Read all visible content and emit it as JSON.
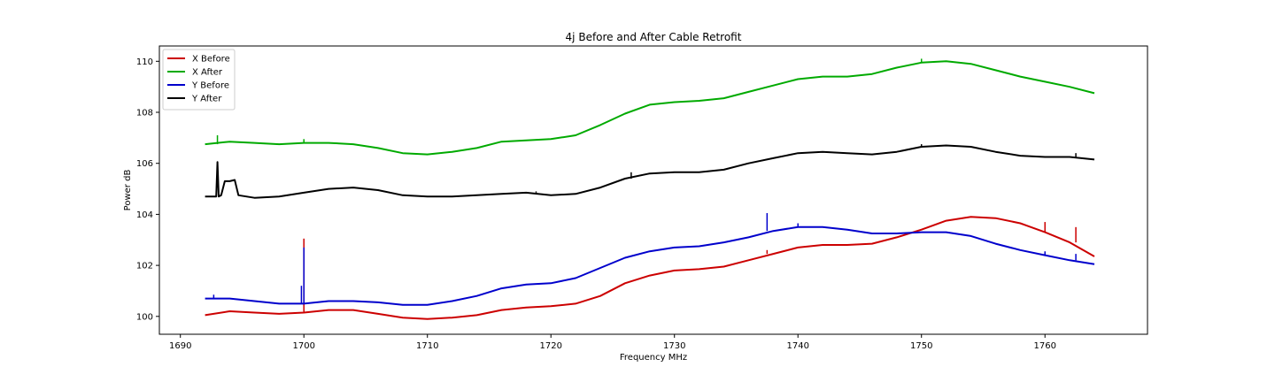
{
  "chart_data": {
    "type": "line",
    "title": "4j Before and After Cable Retrofit",
    "xlabel": "Frequency MHz",
    "ylabel": "Power dB",
    "xlim": [
      1688.3,
      1768.3
    ],
    "ylim": [
      99.3,
      110.6
    ],
    "xticks": [
      1690,
      1700,
      1710,
      1720,
      1730,
      1740,
      1750,
      1760
    ],
    "yticks": [
      100,
      102,
      104,
      106,
      108,
      110
    ],
    "grid": false,
    "legend_position": "upper left",
    "series": [
      {
        "name": "X Before",
        "color": "#cc0000",
        "points": [
          [
            1692,
            100.05
          ],
          [
            1694,
            100.2
          ],
          [
            1696,
            100.15
          ],
          [
            1698,
            100.1
          ],
          [
            1700,
            100.15
          ],
          [
            1702,
            100.25
          ],
          [
            1704,
            100.25
          ],
          [
            1706,
            100.1
          ],
          [
            1708,
            99.95
          ],
          [
            1710,
            99.9
          ],
          [
            1712,
            99.95
          ],
          [
            1714,
            100.05
          ],
          [
            1716,
            100.25
          ],
          [
            1718,
            100.35
          ],
          [
            1720,
            100.4
          ],
          [
            1722,
            100.5
          ],
          [
            1724,
            100.8
          ],
          [
            1726,
            101.3
          ],
          [
            1728,
            101.6
          ],
          [
            1730,
            101.8
          ],
          [
            1732,
            101.85
          ],
          [
            1734,
            101.95
          ],
          [
            1736,
            102.2
          ],
          [
            1738,
            102.45
          ],
          [
            1740,
            102.7
          ],
          [
            1742,
            102.8
          ],
          [
            1744,
            102.8
          ],
          [
            1746,
            102.85
          ],
          [
            1748,
            103.1
          ],
          [
            1750,
            103.4
          ],
          [
            1752,
            103.75
          ],
          [
            1754,
            103.9
          ],
          [
            1756,
            103.85
          ],
          [
            1758,
            103.65
          ],
          [
            1760,
            103.3
          ],
          [
            1762,
            102.9
          ],
          [
            1764,
            102.35
          ]
        ],
        "spikes": [
          [
            1700,
            103.05
          ],
          [
            1760,
            103.7
          ],
          [
            1762.5,
            103.5
          ],
          [
            1737.5,
            102.6
          ],
          [
            1750,
            103.4
          ]
        ]
      },
      {
        "name": "X After",
        "color": "#00aa00",
        "points": [
          [
            1692,
            106.75
          ],
          [
            1694,
            106.85
          ],
          [
            1696,
            106.8
          ],
          [
            1698,
            106.75
          ],
          [
            1700,
            106.8
          ],
          [
            1702,
            106.8
          ],
          [
            1704,
            106.75
          ],
          [
            1706,
            106.6
          ],
          [
            1708,
            106.4
          ],
          [
            1710,
            106.35
          ],
          [
            1712,
            106.45
          ],
          [
            1714,
            106.6
          ],
          [
            1716,
            106.85
          ],
          [
            1718,
            106.9
          ],
          [
            1720,
            106.95
          ],
          [
            1722,
            107.1
          ],
          [
            1724,
            107.5
          ],
          [
            1726,
            107.95
          ],
          [
            1728,
            108.3
          ],
          [
            1730,
            108.4
          ],
          [
            1732,
            108.45
          ],
          [
            1734,
            108.55
          ],
          [
            1736,
            108.8
          ],
          [
            1738,
            109.05
          ],
          [
            1740,
            109.3
          ],
          [
            1742,
            109.4
          ],
          [
            1744,
            109.4
          ],
          [
            1746,
            109.5
          ],
          [
            1748,
            109.75
          ],
          [
            1750,
            109.95
          ],
          [
            1752,
            110.0
          ],
          [
            1754,
            109.9
          ],
          [
            1756,
            109.65
          ],
          [
            1758,
            109.4
          ],
          [
            1760,
            109.2
          ],
          [
            1762,
            109.0
          ],
          [
            1764,
            108.75
          ]
        ],
        "spikes": [
          [
            1693,
            107.1
          ],
          [
            1700,
            106.95
          ],
          [
            1750,
            110.1
          ]
        ]
      },
      {
        "name": "Y Before",
        "color": "#0000cc",
        "points": [
          [
            1692,
            100.7
          ],
          [
            1694,
            100.7
          ],
          [
            1696,
            100.6
          ],
          [
            1698,
            100.5
          ],
          [
            1700,
            100.5
          ],
          [
            1702,
            100.6
          ],
          [
            1704,
            100.6
          ],
          [
            1706,
            100.55
          ],
          [
            1708,
            100.45
          ],
          [
            1710,
            100.45
          ],
          [
            1712,
            100.6
          ],
          [
            1714,
            100.8
          ],
          [
            1716,
            101.1
          ],
          [
            1718,
            101.25
          ],
          [
            1720,
            101.3
          ],
          [
            1722,
            101.5
          ],
          [
            1724,
            101.9
          ],
          [
            1726,
            102.3
          ],
          [
            1728,
            102.55
          ],
          [
            1730,
            102.7
          ],
          [
            1732,
            102.75
          ],
          [
            1734,
            102.9
          ],
          [
            1736,
            103.1
          ],
          [
            1738,
            103.35
          ],
          [
            1740,
            103.5
          ],
          [
            1742,
            103.5
          ],
          [
            1744,
            103.4
          ],
          [
            1746,
            103.25
          ],
          [
            1748,
            103.25
          ],
          [
            1750,
            103.3
          ],
          [
            1752,
            103.3
          ],
          [
            1754,
            103.15
          ],
          [
            1756,
            102.85
          ],
          [
            1758,
            102.6
          ],
          [
            1760,
            102.4
          ],
          [
            1762,
            102.2
          ],
          [
            1764,
            102.05
          ]
        ],
        "spikes": [
          [
            1692.7,
            100.85
          ],
          [
            1699.8,
            101.2
          ],
          [
            1700,
            102.7
          ],
          [
            1737.5,
            104.05
          ],
          [
            1740,
            103.65
          ],
          [
            1760,
            102.55
          ],
          [
            1762.5,
            102.45
          ]
        ]
      },
      {
        "name": "Y After",
        "color": "#000000",
        "points": [
          [
            1692,
            104.7
          ],
          [
            1692.9,
            104.7
          ],
          [
            1693,
            106.05
          ],
          [
            1693.1,
            104.7
          ],
          [
            1693.3,
            104.75
          ],
          [
            1693.6,
            105.3
          ],
          [
            1694,
            105.3
          ],
          [
            1694.4,
            105.35
          ],
          [
            1694.7,
            104.75
          ],
          [
            1696,
            104.65
          ],
          [
            1698,
            104.7
          ],
          [
            1700,
            104.85
          ],
          [
            1702,
            105.0
          ],
          [
            1704,
            105.05
          ],
          [
            1706,
            104.95
          ],
          [
            1708,
            104.75
          ],
          [
            1710,
            104.7
          ],
          [
            1712,
            104.7
          ],
          [
            1714,
            104.75
          ],
          [
            1716,
            104.8
          ],
          [
            1718,
            104.85
          ],
          [
            1720,
            104.75
          ],
          [
            1722,
            104.8
          ],
          [
            1724,
            105.05
          ],
          [
            1726,
            105.4
          ],
          [
            1728,
            105.6
          ],
          [
            1730,
            105.65
          ],
          [
            1732,
            105.65
          ],
          [
            1734,
            105.75
          ],
          [
            1736,
            106.0
          ],
          [
            1738,
            106.2
          ],
          [
            1740,
            106.4
          ],
          [
            1742,
            106.45
          ],
          [
            1744,
            106.4
          ],
          [
            1746,
            106.35
          ],
          [
            1748,
            106.45
          ],
          [
            1750,
            106.65
          ],
          [
            1752,
            106.7
          ],
          [
            1754,
            106.65
          ],
          [
            1756,
            106.45
          ],
          [
            1758,
            106.3
          ],
          [
            1760,
            106.25
          ],
          [
            1762,
            106.25
          ],
          [
            1764,
            106.15
          ]
        ],
        "spikes": [
          [
            1718.8,
            104.9
          ],
          [
            1726.5,
            105.65
          ],
          [
            1750,
            106.75
          ],
          [
            1762.5,
            106.4
          ]
        ]
      }
    ]
  }
}
